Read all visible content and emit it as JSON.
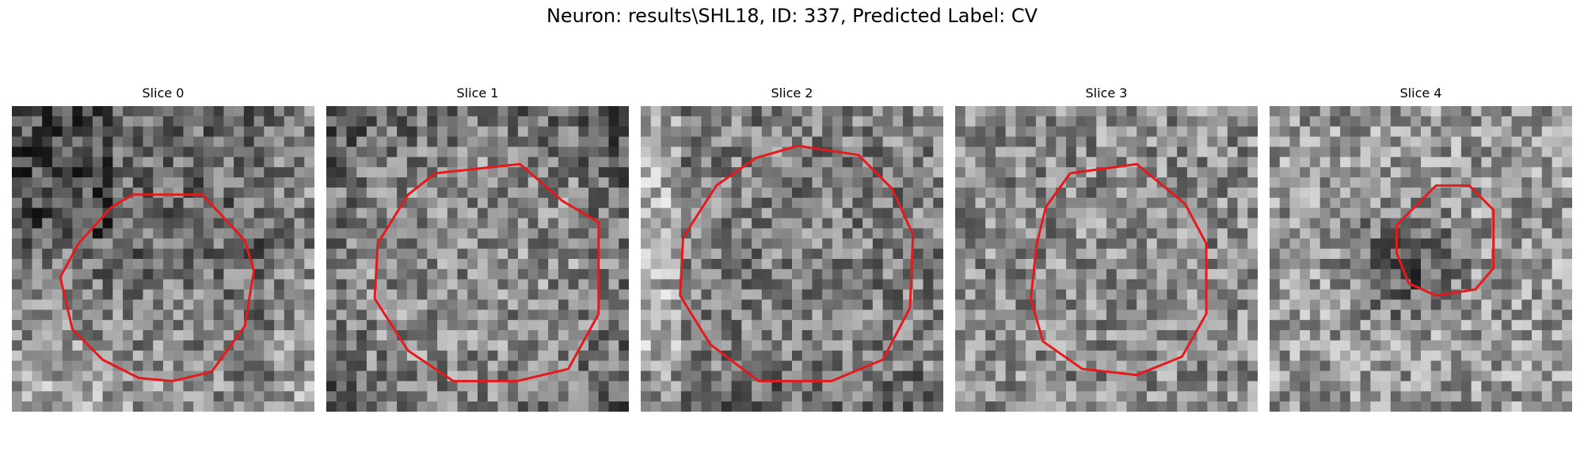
{
  "figure": {
    "title": "Neuron: results\\SHL18, ID: 337, Predicted Label: CV",
    "contour_color": "#e41a1c",
    "colormap": "gray"
  },
  "panels": [
    {
      "title": "Slice 0",
      "seed": 11,
      "illumination": "bright-lower-left",
      "contour": [
        [
          0.4,
          0.29
        ],
        [
          0.63,
          0.29
        ],
        [
          0.77,
          0.44
        ],
        [
          0.8,
          0.54
        ],
        [
          0.77,
          0.72
        ],
        [
          0.66,
          0.87
        ],
        [
          0.53,
          0.9
        ],
        [
          0.42,
          0.89
        ],
        [
          0.3,
          0.83
        ],
        [
          0.2,
          0.73
        ],
        [
          0.16,
          0.56
        ],
        [
          0.22,
          0.45
        ],
        [
          0.33,
          0.33
        ]
      ]
    },
    {
      "title": "Slice 1",
      "seed": 23,
      "illumination": "dark-edges",
      "contour": [
        [
          0.36,
          0.22
        ],
        [
          0.64,
          0.19
        ],
        [
          0.78,
          0.31
        ],
        [
          0.9,
          0.38
        ],
        [
          0.9,
          0.68
        ],
        [
          0.8,
          0.86
        ],
        [
          0.63,
          0.9
        ],
        [
          0.42,
          0.9
        ],
        [
          0.27,
          0.8
        ],
        [
          0.16,
          0.63
        ],
        [
          0.17,
          0.45
        ],
        [
          0.27,
          0.29
        ]
      ]
    },
    {
      "title": "Slice 2",
      "seed": 37,
      "illumination": "bright-left",
      "contour": [
        [
          0.52,
          0.13
        ],
        [
          0.72,
          0.16
        ],
        [
          0.83,
          0.27
        ],
        [
          0.9,
          0.42
        ],
        [
          0.89,
          0.66
        ],
        [
          0.8,
          0.83
        ],
        [
          0.63,
          0.9
        ],
        [
          0.39,
          0.9
        ],
        [
          0.23,
          0.78
        ],
        [
          0.13,
          0.62
        ],
        [
          0.14,
          0.43
        ],
        [
          0.25,
          0.26
        ],
        [
          0.38,
          0.17
        ]
      ]
    },
    {
      "title": "Slice 3",
      "seed": 51,
      "illumination": "uniform",
      "contour": [
        [
          0.38,
          0.22
        ],
        [
          0.6,
          0.19
        ],
        [
          0.76,
          0.32
        ],
        [
          0.83,
          0.45
        ],
        [
          0.83,
          0.68
        ],
        [
          0.75,
          0.82
        ],
        [
          0.6,
          0.88
        ],
        [
          0.42,
          0.86
        ],
        [
          0.29,
          0.77
        ],
        [
          0.25,
          0.63
        ],
        [
          0.27,
          0.45
        ],
        [
          0.3,
          0.33
        ]
      ]
    },
    {
      "title": "Slice 4",
      "seed": 67,
      "illumination": "dark-center",
      "contour": [
        [
          0.55,
          0.26
        ],
        [
          0.66,
          0.26
        ],
        [
          0.74,
          0.34
        ],
        [
          0.74,
          0.53
        ],
        [
          0.68,
          0.6
        ],
        [
          0.55,
          0.62
        ],
        [
          0.46,
          0.58
        ],
        [
          0.42,
          0.48
        ],
        [
          0.42,
          0.39
        ]
      ]
    }
  ]
}
